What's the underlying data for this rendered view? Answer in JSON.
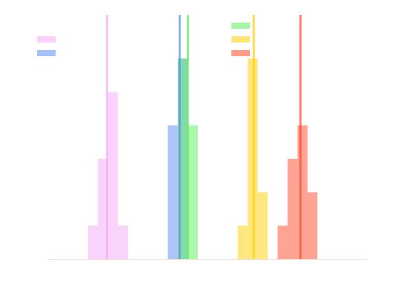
{
  "chart_data": {
    "type": "histogram",
    "xlim": [
      0,
      32
    ],
    "ylim": [
      0,
      7.3
    ],
    "series": [
      {
        "color": "#f5a8f5",
        "bins": [
          4,
          5,
          6,
          7,
          8
        ],
        "values": [
          1,
          3,
          5,
          1
        ],
        "mean": 5.9
      },
      {
        "color": "#5a8ff0",
        "bins": [
          12,
          13,
          14
        ],
        "values": [
          4,
          6
        ],
        "mean": 13.2
      },
      {
        "color": "#5cef5c",
        "bins": [
          13,
          14,
          15
        ],
        "values": [
          6,
          4
        ],
        "mean": 14.0
      },
      {
        "color": "#ffd000",
        "bins": [
          19,
          20,
          21,
          22
        ],
        "values": [
          1,
          6,
          2
        ],
        "mean": 20.6
      },
      {
        "color": "#ff4a2a",
        "bins": [
          23,
          24,
          25,
          26,
          27
        ],
        "values": [
          1,
          3,
          4,
          2
        ],
        "mean": 25.3
      }
    ]
  }
}
